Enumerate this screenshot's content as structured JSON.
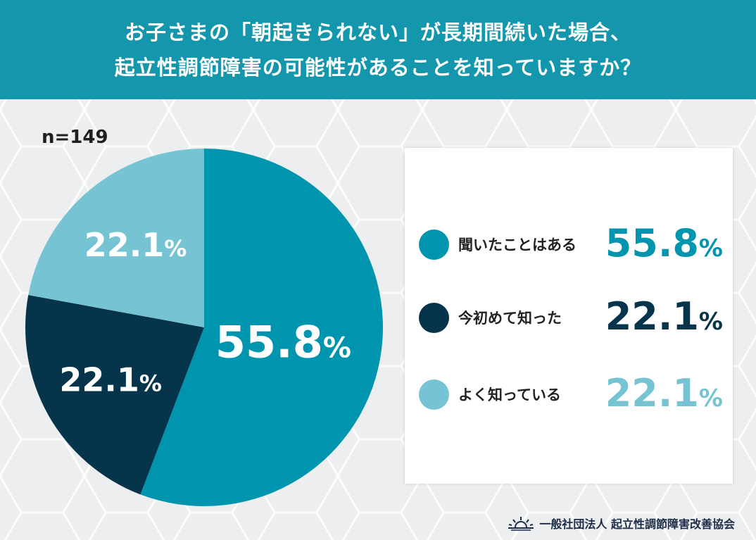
{
  "header": {
    "title_line1": "お子さまの「朝起きられない」が長期間続いた場合、",
    "title_line2": "起立性調節障害の可能性があることを知っていますか？"
  },
  "sample": "n=149",
  "colors": {
    "header_bg": "#1496ac",
    "series": [
      "#0095ae",
      "#06354b",
      "#76c4d3"
    ]
  },
  "chart_data": {
    "type": "pie",
    "categories": [
      "聞いたことはある",
      "今初めて知った",
      "よく知っている"
    ],
    "values": [
      55.8,
      22.1,
      22.1
    ],
    "unit": "%",
    "legend": "right"
  },
  "legend": [
    {
      "label": "聞いたことはある",
      "value": "55.8",
      "unit": "%"
    },
    {
      "label": "今初めて知った",
      "value": "22.1",
      "unit": "%"
    },
    {
      "label": "よく知っている",
      "value": "22.1",
      "unit": "%"
    }
  ],
  "footer": {
    "logo_icon": "sunrise-icon",
    "org": "一般社団法人 起立性調節障害改善協会"
  }
}
